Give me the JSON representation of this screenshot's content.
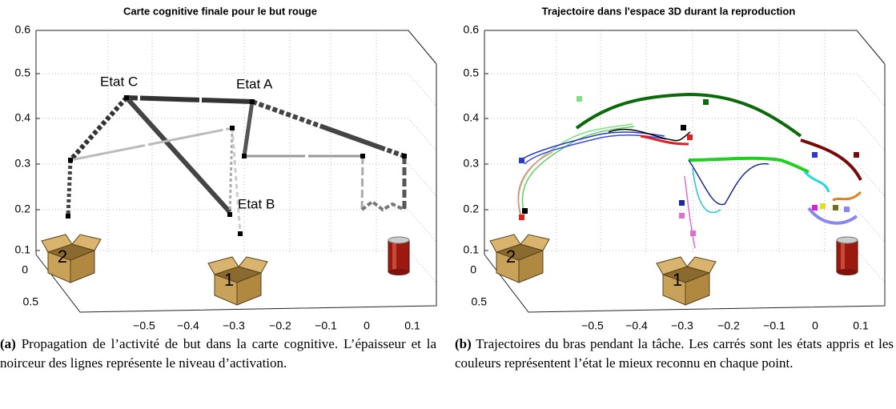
{
  "panels": [
    {
      "title": "Carte cognitive finale pour le but rouge",
      "z_ticks": [
        "0.6",
        "0.5",
        "0.4",
        "0.3",
        "0.2",
        "0.1"
      ],
      "y_ticks": [
        "0",
        "0.5"
      ],
      "x_ticks": [
        "−0.5",
        "−0.4",
        "−0.3",
        "−0.2",
        "−0.1",
        "0",
        "0.1"
      ],
      "state_labels": [
        "Etat C",
        "Etat A",
        "Etat B"
      ],
      "box_labels": [
        "2",
        "1"
      ],
      "caption": {
        "label": "(a)",
        "text": "Propagation de l’activité de but dans la carte cognitive. L’épaisseur et la noirceur des lignes représente le niveau d’activation."
      }
    },
    {
      "title": "Trajectoire dans l'espace 3D durant la reproduction",
      "z_ticks": [
        "0.6",
        "0.5",
        "0.4",
        "0.3",
        "0.2",
        "0.1"
      ],
      "y_ticks": [
        "0",
        "0.5"
      ],
      "x_ticks": [
        "−0.5",
        "−0.4",
        "−0.3",
        "−0.2",
        "−0.1",
        "0",
        "0.1"
      ],
      "box_labels": [
        "2",
        "1"
      ],
      "caption": {
        "label": "(b)",
        "text": "Trajectoires du bras pendant la tâche. Les carrés sont les états appris et les couleurs représentent l’état le mieux reconnu en chaque point."
      }
    }
  ]
}
